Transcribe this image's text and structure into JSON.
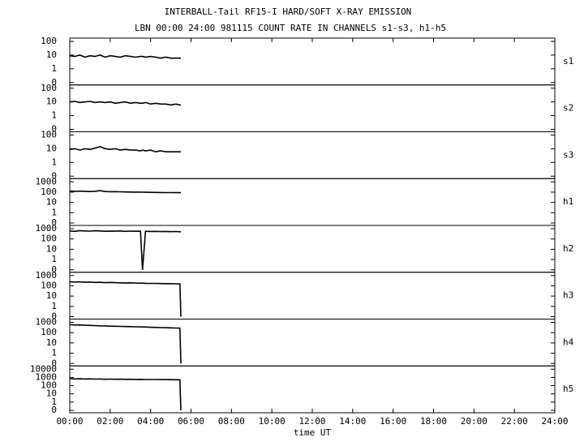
{
  "chart_data": {
    "type": "line",
    "title": "INTERBALL-Tail RF15-I HARD/SOFT X-RAY EMISSION",
    "subtitle": "LBN 00:00 24:00 981115  COUNT RATE IN CHANNELS s1-s3, h1-h5",
    "xlabel": "time UT",
    "xlim": [
      0,
      24
    ],
    "xticks": [
      {
        "value": 0,
        "label": "00:00"
      },
      {
        "value": 2,
        "label": "02:00"
      },
      {
        "value": 4,
        "label": "04:00"
      },
      {
        "value": 6,
        "label": "06:00"
      },
      {
        "value": 8,
        "label": "08:00"
      },
      {
        "value": 10,
        "label": "10:00"
      },
      {
        "value": 12,
        "label": "12:00"
      },
      {
        "value": 14,
        "label": "14:00"
      },
      {
        "value": 16,
        "label": "16:00"
      },
      {
        "value": 18,
        "label": "18:00"
      },
      {
        "value": 20,
        "label": "20:00"
      },
      {
        "value": 22,
        "label": "22:00"
      },
      {
        "value": 24,
        "label": "24:00"
      }
    ],
    "yscale": "log",
    "color": "#000000",
    "x": [
      0,
      0.25,
      0.5,
      0.75,
      1,
      1.25,
      1.5,
      1.75,
      2,
      2.25,
      2.5,
      2.75,
      3,
      3.25,
      3.5,
      3.6,
      3.75,
      4,
      4.25,
      4.5,
      4.75,
      5,
      5.25,
      5.45,
      5.5
    ],
    "panels": [
      {
        "name": "s1",
        "ylim": [
          0,
          100
        ],
        "yticks": [
          100,
          10,
          1,
          0
        ],
        "values": [
          9,
          8,
          10,
          7,
          9,
          8,
          10,
          7,
          9,
          8,
          7,
          9,
          8,
          7,
          8,
          8,
          7,
          8,
          7,
          6,
          7,
          6,
          6,
          6,
          6
        ]
      },
      {
        "name": "s2",
        "ylim": [
          0,
          100
        ],
        "yticks": [
          100,
          10,
          1,
          0
        ],
        "values": [
          10,
          11,
          9,
          10,
          11,
          9,
          10,
          9,
          10,
          8,
          9,
          10,
          8,
          9,
          8,
          8,
          9,
          7,
          8,
          7,
          7,
          6,
          7,
          6,
          6
        ]
      },
      {
        "name": "s3",
        "ylim": [
          0,
          100
        ],
        "yticks": [
          100,
          10,
          1,
          0
        ],
        "values": [
          9,
          10,
          8,
          10,
          9,
          11,
          14,
          10,
          9,
          10,
          8,
          9,
          8,
          8,
          7,
          8,
          7,
          8,
          6,
          7,
          6,
          6,
          6,
          6,
          6
        ]
      },
      {
        "name": "h1",
        "ylim": [
          0,
          1000
        ],
        "yticks": [
          1000,
          100,
          10,
          1,
          0
        ],
        "values": [
          130,
          120,
          125,
          120,
          115,
          120,
          140,
          115,
          110,
          112,
          108,
          105,
          103,
          100,
          100,
          98,
          97,
          95,
          93,
          92,
          90,
          90,
          88,
          88,
          88
        ]
      },
      {
        "name": "h2",
        "ylim": [
          0,
          1000
        ],
        "yticks": [
          1000,
          100,
          10,
          1,
          0
        ],
        "values": [
          600,
          550,
          650,
          600,
          580,
          620,
          600,
          560,
          590,
          570,
          600,
          550,
          580,
          560,
          570,
          0,
          560,
          540,
          550,
          520,
          540,
          510,
          530,
          500,
          500
        ]
      },
      {
        "name": "h3",
        "ylim": [
          0,
          1000
        ],
        "yticks": [
          1000,
          100,
          10,
          1,
          0
        ],
        "values": [
          250,
          230,
          240,
          220,
          230,
          210,
          220,
          200,
          210,
          200,
          195,
          190,
          195,
          185,
          180,
          180,
          175,
          170,
          170,
          165,
          160,
          160,
          155,
          150,
          0
        ]
      },
      {
        "name": "h4",
        "ylim": [
          0,
          1000
        ],
        "yticks": [
          1000,
          100,
          10,
          1,
          0
        ],
        "values": [
          600,
          550,
          560,
          520,
          500,
          480,
          460,
          450,
          430,
          420,
          400,
          390,
          380,
          370,
          360,
          355,
          350,
          330,
          320,
          310,
          300,
          290,
          280,
          270,
          0
        ]
      },
      {
        "name": "h5",
        "ylim": [
          0,
          10000
        ],
        "yticks": [
          10000,
          1000,
          100,
          10,
          1,
          0
        ],
        "values": [
          700,
          650,
          680,
          640,
          660,
          620,
          640,
          600,
          620,
          600,
          610,
          580,
          590,
          570,
          580,
          570,
          560,
          560,
          550,
          540,
          540,
          530,
          520,
          520,
          0
        ]
      }
    ]
  }
}
